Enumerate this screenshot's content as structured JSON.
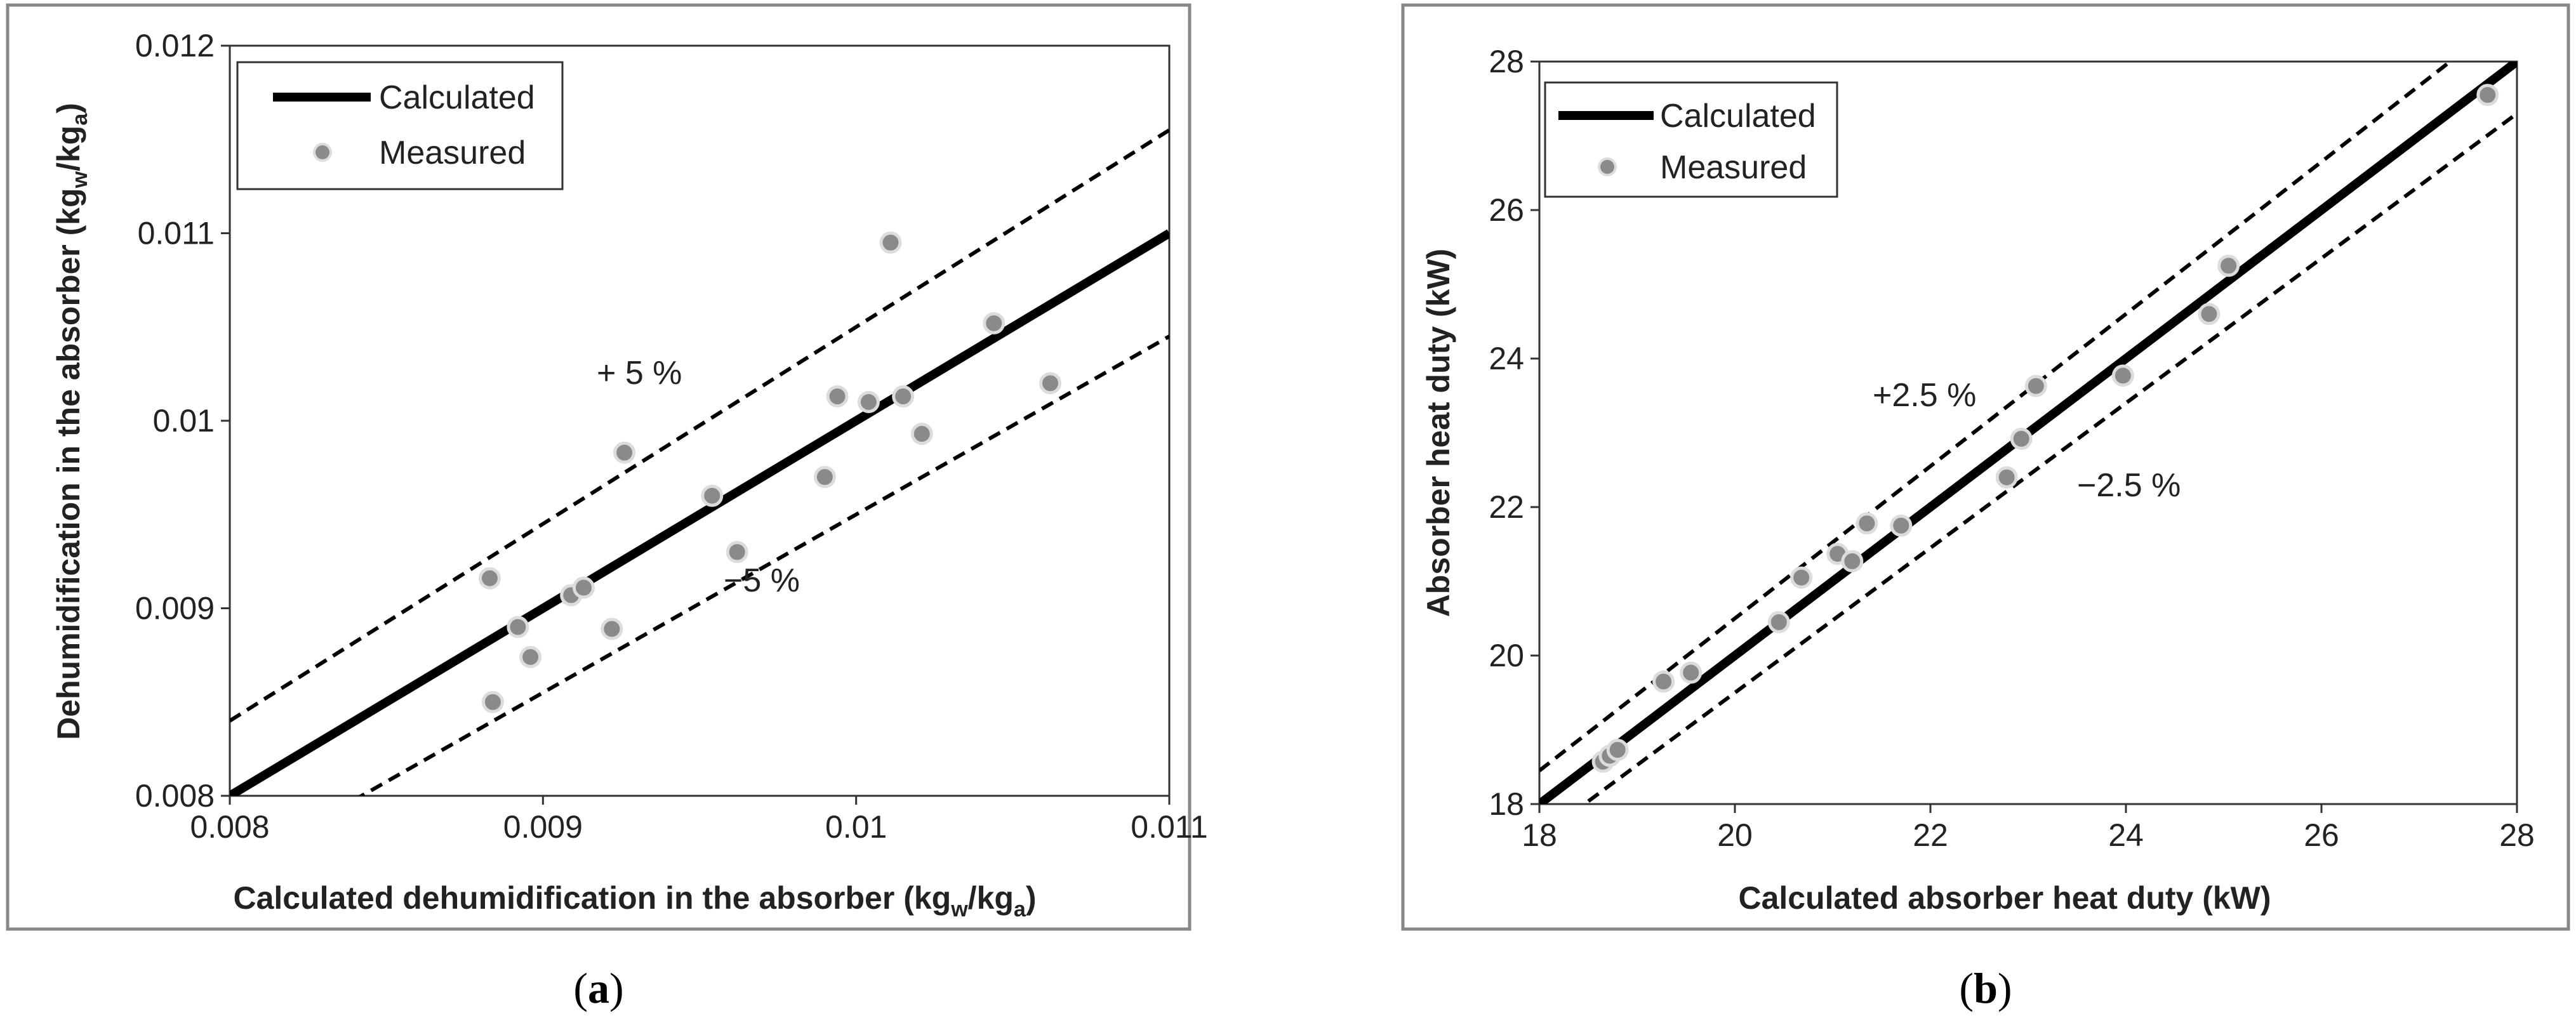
{
  "chart_data": [
    {
      "type": "scatter",
      "panel_label": "(a)",
      "panel_letter": "a",
      "xlabel": "Calculated dehumidification in the absorber (kg",
      "xlabel_sub1": "w",
      "xlabel_mid": "/kg",
      "xlabel_sub2": "a",
      "xlabel_end": ")",
      "ylabel": "Dehumidification in the absorber (kg",
      "ylabel_sub1": "w",
      "ylabel_mid": "/kg",
      "ylabel_sub2": "a",
      "ylabel_end": ")",
      "xlim": [
        0.008,
        0.011
      ],
      "ylim": [
        0.008,
        0.012
      ],
      "xticks": [
        0.008,
        0.009,
        0.01,
        0.011
      ],
      "xtick_labels": [
        "0.008",
        "0.009",
        "0.01",
        "0.011"
      ],
      "yticks": [
        0.008,
        0.009,
        0.01,
        0.011,
        0.012
      ],
      "ytick_labels": [
        "0.008",
        "0.009",
        "0.01",
        "0.011",
        "0.012"
      ],
      "band_pct": 0.05,
      "legend": [
        "Calculated",
        "Measured"
      ],
      "annotations": [
        "+ 5 %",
        "−5 %"
      ],
      "measured": [
        {
          "x": 0.00883,
          "y": 0.00916
        },
        {
          "x": 0.00884,
          "y": 0.0085
        },
        {
          "x": 0.00892,
          "y": 0.0089
        },
        {
          "x": 0.00896,
          "y": 0.00874
        },
        {
          "x": 0.00909,
          "y": 0.00907
        },
        {
          "x": 0.00913,
          "y": 0.00911
        },
        {
          "x": 0.00922,
          "y": 0.00889
        },
        {
          "x": 0.00926,
          "y": 0.00983
        },
        {
          "x": 0.00954,
          "y": 0.0096
        },
        {
          "x": 0.00962,
          "y": 0.0093
        },
        {
          "x": 0.0099,
          "y": 0.0097
        },
        {
          "x": 0.00994,
          "y": 0.01013
        },
        {
          "x": 0.01004,
          "y": 0.0101
        },
        {
          "x": 0.01011,
          "y": 0.01095
        },
        {
          "x": 0.01015,
          "y": 0.01013
        },
        {
          "x": 0.01021,
          "y": 0.00993
        },
        {
          "x": 0.01044,
          "y": 0.01052
        },
        {
          "x": 0.01062,
          "y": 0.0102
        }
      ]
    },
    {
      "type": "scatter",
      "panel_label": "(b)",
      "panel_letter": "b",
      "xlabel": "Calculated absorber heat duty (kW)",
      "ylabel": "Absorber heat duty (kW)",
      "xlim": [
        18,
        28
      ],
      "ylim": [
        18,
        28
      ],
      "xticks": [
        18,
        20,
        22,
        24,
        26,
        28
      ],
      "xtick_labels": [
        "18",
        "20",
        "22",
        "24",
        "26",
        "28"
      ],
      "yticks": [
        18,
        20,
        22,
        24,
        26,
        28
      ],
      "ytick_labels": [
        "18",
        "20",
        "22",
        "24",
        "26",
        "28"
      ],
      "band_pct": 0.025,
      "legend": [
        "Calculated",
        "Measured"
      ],
      "annotations": [
        "+2.5 %",
        "−2.5 %"
      ],
      "measured": [
        {
          "x": 18.65,
          "y": 18.57
        },
        {
          "x": 18.72,
          "y": 18.65
        },
        {
          "x": 18.8,
          "y": 18.73
        },
        {
          "x": 19.27,
          "y": 19.65
        },
        {
          "x": 19.55,
          "y": 19.77
        },
        {
          "x": 20.45,
          "y": 20.45
        },
        {
          "x": 20.68,
          "y": 21.05
        },
        {
          "x": 21.05,
          "y": 21.37
        },
        {
          "x": 21.2,
          "y": 21.27
        },
        {
          "x": 21.35,
          "y": 21.78
        },
        {
          "x": 21.7,
          "y": 21.75
        },
        {
          "x": 22.78,
          "y": 22.4
        },
        {
          "x": 22.93,
          "y": 22.92
        },
        {
          "x": 23.08,
          "y": 23.63
        },
        {
          "x": 23.97,
          "y": 23.77
        },
        {
          "x": 24.85,
          "y": 24.6
        },
        {
          "x": 25.05,
          "y": 25.25
        },
        {
          "x": 27.7,
          "y": 27.55
        }
      ]
    }
  ]
}
